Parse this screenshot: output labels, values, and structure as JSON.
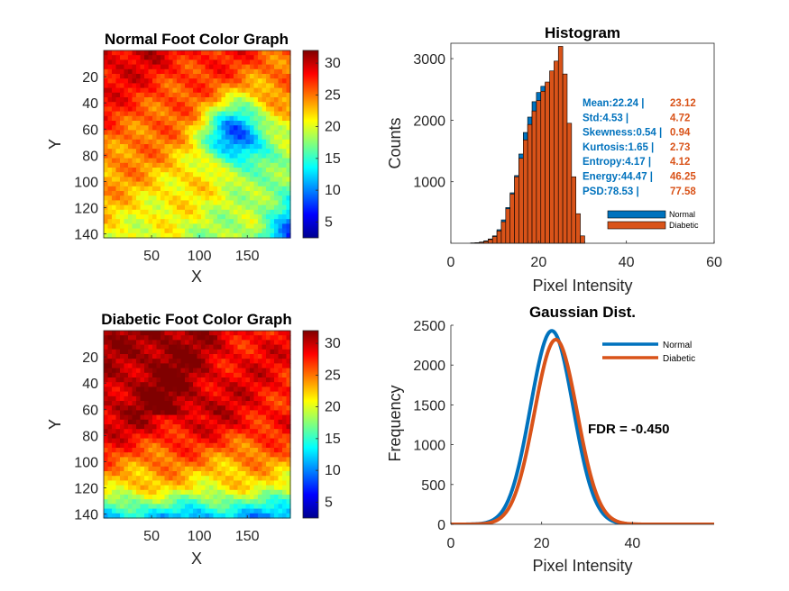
{
  "colors": {
    "normal": "#0072BD",
    "diabetic": "#D95319",
    "axis": "#262626"
  },
  "chart_data": [
    {
      "id": "normal_map",
      "type": "heatmap",
      "title": "Normal Foot Color Graph",
      "xlabel": "X",
      "ylabel": "Y",
      "xlim": [
        0,
        195
      ],
      "ylim": [
        0,
        143
      ],
      "xticks": [
        "50",
        "100",
        "150"
      ],
      "yticks": [
        "20",
        "40",
        "60",
        "80",
        "100",
        "120",
        "140"
      ],
      "colorbar": {
        "range": [
          2.5,
          32
        ],
        "ticks": [
          "5",
          "10",
          "15",
          "20",
          "25",
          "30"
        ],
        "colormap": "jet"
      }
    },
    {
      "id": "diabetic_map",
      "type": "heatmap",
      "title": "Diabetic Foot Color Graph",
      "xlabel": "X",
      "ylabel": "Y",
      "xlim": [
        0,
        195
      ],
      "ylim": [
        0,
        143
      ],
      "xticks": [
        "50",
        "100",
        "150"
      ],
      "yticks": [
        "20",
        "40",
        "60",
        "80",
        "100",
        "120",
        "140"
      ],
      "colorbar": {
        "range": [
          2.5,
          32
        ],
        "ticks": [
          "5",
          "10",
          "15",
          "20",
          "25",
          "30"
        ],
        "colormap": "jet"
      }
    },
    {
      "id": "histogram",
      "type": "bar",
      "title": "Histogram",
      "xlabel": "Pixel Intensity",
      "ylabel": "Counts",
      "xlim": [
        0,
        60
      ],
      "ylim": [
        0,
        3250
      ],
      "xticks": [
        "0",
        "20",
        "40",
        "60"
      ],
      "yticks": [
        "1000",
        "2000",
        "3000"
      ],
      "bin_width": 1,
      "x": [
        5,
        6,
        7,
        8,
        9,
        10,
        11,
        12,
        13,
        14,
        15,
        16,
        17,
        18,
        19,
        20,
        21,
        22,
        23,
        24,
        25,
        26,
        27,
        28,
        29,
        30
      ],
      "series": [
        {
          "name": "Normal",
          "values": [
            5,
            10,
            20,
            40,
            70,
            120,
            220,
            380,
            580,
            820,
            1100,
            1450,
            1800,
            2050,
            2300,
            2450,
            2550,
            2600,
            2350,
            2000,
            1600,
            1150,
            700,
            350,
            100,
            30
          ]
        },
        {
          "name": "Diabetic",
          "values": [
            5,
            8,
            15,
            30,
            60,
            110,
            200,
            350,
            560,
            800,
            1080,
            1380,
            1680,
            1930,
            2150,
            2320,
            2470,
            2620,
            2800,
            2960,
            3200,
            2750,
            1950,
            1080,
            480,
            120
          ]
        }
      ],
      "stats": [
        {
          "normal": "Mean:22.24 |",
          "diabetic": "23.12"
        },
        {
          "normal": "Std:4.53 |",
          "diabetic": "4.72"
        },
        {
          "normal": "Skewness:0.54 |",
          "diabetic": "0.94"
        },
        {
          "normal": "Kurtosis:1.65 |",
          "diabetic": "2.73"
        },
        {
          "normal": "Entropy:4.17 |",
          "diabetic": "4.12"
        },
        {
          "normal": "Energy:44.47 |",
          "diabetic": "46.25"
        },
        {
          "normal": "PSD:78.53 |",
          "diabetic": "77.58"
        }
      ],
      "legend": {
        "position": "bottom-right",
        "entries": [
          "Normal",
          "Diabetic"
        ]
      }
    },
    {
      "id": "gaussian",
      "type": "line",
      "title": "Gaussian Dist.",
      "xlabel": "Pixel Intensity",
      "ylabel": "Frequency",
      "xlim": [
        0,
        58
      ],
      "ylim": [
        0,
        2500
      ],
      "xticks": [
        "0",
        "20",
        "40"
      ],
      "yticks": [
        "0",
        "500",
        "1000",
        "1500",
        "2000",
        "2500"
      ],
      "series": [
        {
          "name": "Normal",
          "mean": 22.24,
          "peak": 2430
        },
        {
          "name": "Diabetic",
          "mean": 23.12,
          "peak": 2320
        }
      ],
      "sigma": 4.7,
      "annotation": "FDR = -0.450",
      "legend": {
        "position": "top-right",
        "entries": [
          "Normal",
          "Diabetic"
        ]
      }
    }
  ]
}
